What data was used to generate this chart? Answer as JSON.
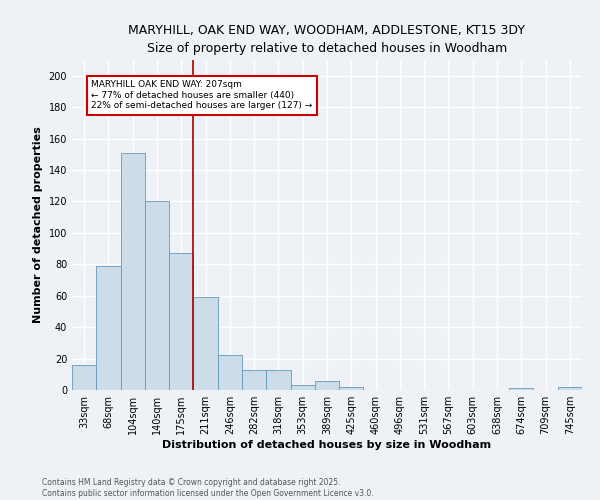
{
  "title_line1": "MARYHILL, OAK END WAY, WOODHAM, ADDLESTONE, KT15 3DY",
  "title_line2": "Size of property relative to detached houses in Woodham",
  "xlabel": "Distribution of detached houses by size in Woodham",
  "ylabel": "Number of detached properties",
  "categories": [
    "33sqm",
    "68sqm",
    "104sqm",
    "140sqm",
    "175sqm",
    "211sqm",
    "246sqm",
    "282sqm",
    "318sqm",
    "353sqm",
    "389sqm",
    "425sqm",
    "460sqm",
    "496sqm",
    "531sqm",
    "567sqm",
    "603sqm",
    "638sqm",
    "674sqm",
    "709sqm",
    "745sqm"
  ],
  "values": [
    16,
    79,
    151,
    120,
    87,
    59,
    22,
    13,
    13,
    3,
    6,
    2,
    0,
    0,
    0,
    0,
    0,
    0,
    1,
    0,
    2
  ],
  "bar_color": "#ccdce8",
  "bar_edge_color": "#6699bb",
  "property_line_x": 4.5,
  "annotation_text_line1": "MARYHILL OAK END WAY: 207sqm",
  "annotation_text_line2": "← 77% of detached houses are smaller (440)",
  "annotation_text_line3": "22% of semi-detached houses are larger (127) →",
  "annotation_box_color": "white",
  "annotation_box_edge_color": "#cc0000",
  "red_line_color": "#aa0000",
  "background_color": "#eef2f7",
  "grid_color": "white",
  "ylim": [
    0,
    210
  ],
  "yticks": [
    0,
    20,
    40,
    60,
    80,
    100,
    120,
    140,
    160,
    180,
    200
  ],
  "footer_line1": "Contains HM Land Registry data © Crown copyright and database right 2025.",
  "footer_line2": "Contains public sector information licensed under the Open Government Licence v3.0.",
  "title_fontsize": 9,
  "subtitle_fontsize": 8.5,
  "axis_label_fontsize": 8,
  "tick_fontsize": 7,
  "annotation_fontsize": 6.5,
  "footer_fontsize": 5.5
}
